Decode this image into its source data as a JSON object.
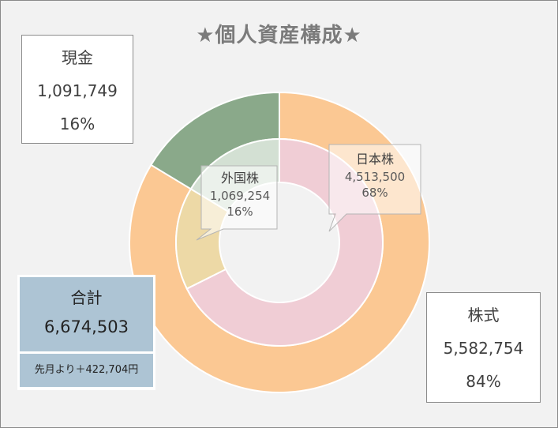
{
  "title": "★個人資産構成★",
  "chart_data": {
    "type": "donut",
    "title": "★個人資産構成★",
    "rings": [
      {
        "name": "outer",
        "slices": [
          {
            "label": "株式",
            "value": 5582754,
            "percent": "84%",
            "color": "#fbc893"
          },
          {
            "label": "現金",
            "value": 1091749,
            "percent": "16%",
            "color": "#8aa98a"
          }
        ]
      },
      {
        "name": "inner",
        "slices": [
          {
            "label": "日本株",
            "value": 4513500,
            "percent": "68%",
            "color": "#f0cdd5"
          },
          {
            "label": "外国株",
            "value": 1069254,
            "percent": "16%",
            "color": "#edd9a6"
          },
          {
            "label": "",
            "value": 1091749,
            "percent": "16%",
            "color": "#d3e0d3"
          }
        ]
      }
    ]
  },
  "cash_box": {
    "label": "現金",
    "value": "1,091,749",
    "percent": "16%"
  },
  "stock_box": {
    "label": "株式",
    "value": "5,582,754",
    "percent": "84%"
  },
  "japan_callout": {
    "label": "日本株",
    "value": "4,513,500",
    "percent": "68%"
  },
  "foreign_callout": {
    "label": "外国株",
    "value": "1,069,254",
    "percent": "16%"
  },
  "total": {
    "label": "合計",
    "value": "6,674,503",
    "diff": "先月より＋422,704円"
  }
}
